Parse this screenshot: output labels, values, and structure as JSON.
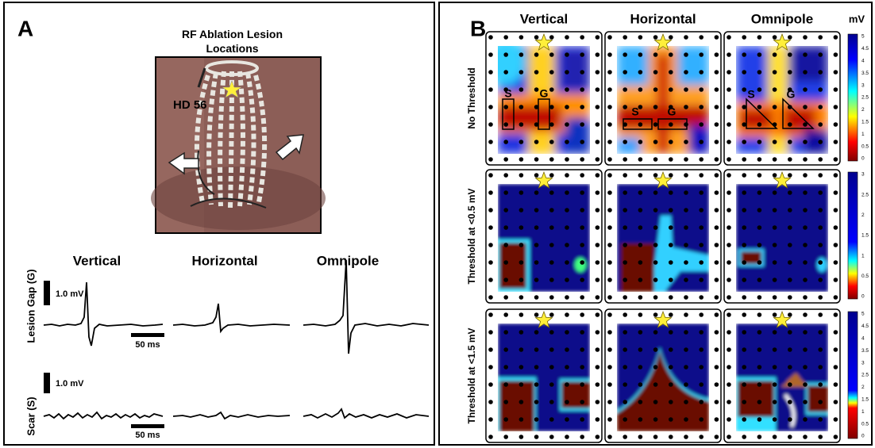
{
  "panel_a": {
    "label": "A",
    "photo_title": "RF Ablation Lesion Locations",
    "photo_label": "HD 56",
    "columns": [
      "Vertical",
      "Horizontal",
      "Omnipole"
    ],
    "rows": [
      {
        "label": "Lesion Gap (G)",
        "scale_voltage": "1.0 mV",
        "scale_time": "50 ms"
      },
      {
        "label": "Scar (S)",
        "scale_voltage": "1.0 mV",
        "scale_time": "50 ms"
      }
    ]
  },
  "panel_b": {
    "label": "B",
    "columns": [
      "Vertical",
      "Horizontal",
      "Omnipole"
    ],
    "unit": "mV",
    "rows": [
      {
        "label": "No Threshold",
        "colorbar_ticks": [
          "5",
          "4.5",
          "4",
          "3.5",
          "3",
          "2.5",
          "2",
          "1.5",
          "1",
          "0.5",
          "0"
        ],
        "map_labels": [
          [
            "S",
            "G"
          ],
          [
            "S",
            "G"
          ],
          [
            "S",
            "G"
          ]
        ]
      },
      {
        "label": "Threshold at <0.5 mV",
        "colorbar_ticks": [
          "3",
          "2.5",
          "2",
          "1.5",
          "1",
          "0.5",
          "0"
        ]
      },
      {
        "label": "Threshold at <1.5 mV",
        "colorbar_ticks": [
          "5",
          "4.5",
          "4",
          "3.5",
          "3",
          "2.5",
          "2",
          "1.5",
          "1",
          "0.5",
          "0"
        ]
      }
    ]
  }
}
